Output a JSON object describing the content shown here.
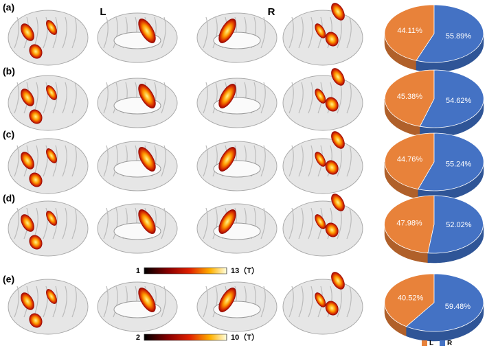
{
  "panels": [
    "(a)",
    "(b)",
    "(c)",
    "(d)",
    "(e)"
  ],
  "hemispheres": [
    "L",
    "R"
  ],
  "colorbars": [
    {
      "lim": [
        1,
        13
      ],
      "ticks": [
        1,
        {
          "value": 13,
          "label": "13（T）"
        }
      ]
    },
    {
      "lim": [
        2,
        10
      ],
      "ticks": [
        2,
        {
          "value": 10,
          "label": "10（T）"
        }
      ]
    }
  ],
  "legend": {
    "categories": [
      "L",
      "R"
    ],
    "colors": [
      "#E8823A",
      "#4472C4"
    ]
  },
  "chart_data": [
    {
      "type": "pie",
      "values": [
        44.11,
        55.89
      ],
      "value_labels": [
        "44.11%",
        "55.89%"
      ]
    },
    {
      "type": "pie",
      "values": [
        45.38,
        54.62
      ],
      "value_labels": [
        "45.38%",
        "54.62%"
      ]
    },
    {
      "type": "pie",
      "values": [
        44.76,
        55.24
      ],
      "value_labels": [
        "44.76%",
        "55.24%"
      ]
    },
    {
      "type": "pie",
      "values": [
        47.98,
        52.02
      ],
      "value_labels": [
        "47.98%",
        "52.02%"
      ]
    },
    {
      "type": "pie",
      "values": [
        40.52,
        59.48
      ],
      "value_labels": [
        "40.52%",
        "59.48%"
      ]
    }
  ]
}
